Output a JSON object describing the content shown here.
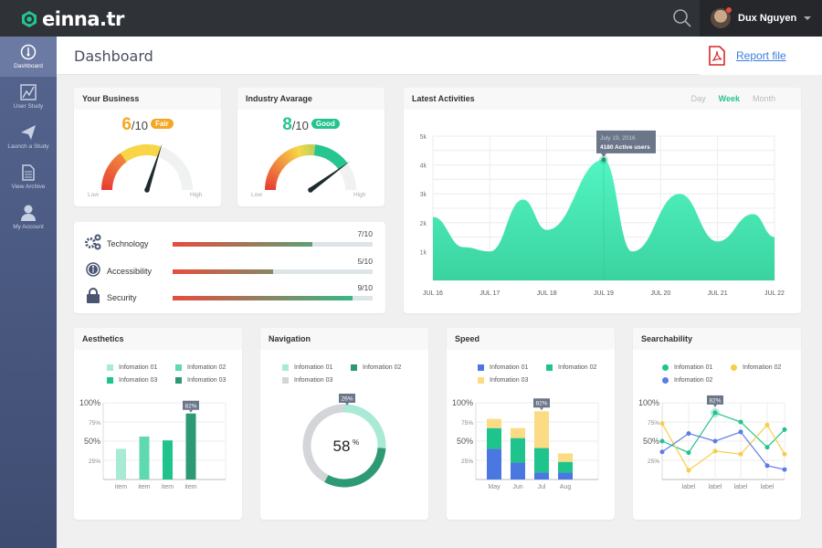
{
  "app": {
    "logo_text": "einna.tr",
    "brand_color": "#23c48e"
  },
  "user": {
    "name": "Dux Nguyen"
  },
  "sidebar": {
    "items": [
      {
        "label": "Dashboard",
        "icon": "dashboard-icon",
        "active": true
      },
      {
        "label": "User Study",
        "icon": "chart-icon"
      },
      {
        "label": "Launch a Study",
        "icon": "paper-plane-icon"
      },
      {
        "label": "View Archive",
        "icon": "document-icon"
      },
      {
        "label": "My Account",
        "icon": "user-icon"
      }
    ]
  },
  "header": {
    "title": "Dashboard",
    "report_label": "Report file"
  },
  "your_business": {
    "title": "Your Business",
    "score": 6,
    "max": "/10",
    "badge": "Fair",
    "badge_color": "#f5a623",
    "low": "Low",
    "high": "High"
  },
  "industry": {
    "title": "Industry Avarage",
    "score": 8,
    "max": "/10",
    "badge": "Good",
    "badge_color": "#23c48e",
    "low": "Low",
    "high": "High"
  },
  "ratings": [
    {
      "label": "Technology",
      "value": "7/10",
      "fraction": 0.7,
      "icon": "gears-icon"
    },
    {
      "label": "Accessibility",
      "value": "5/10",
      "fraction": 0.5,
      "icon": "accessibility-icon"
    },
    {
      "label": "Security",
      "value": "9/10",
      "fraction": 0.9,
      "icon": "lock-icon"
    }
  ],
  "activities": {
    "title": "Latest Activities",
    "tabs": [
      "Day",
      "Week",
      "Month"
    ],
    "active_tab": "Week",
    "tooltip_date": "July 19, 2016",
    "tooltip_value": "4180 Active users"
  },
  "chart_data": [
    {
      "type": "area",
      "title": "Latest Activities",
      "x_labels": [
        "JUL 16",
        "JUL 17",
        "JUL 18",
        "JUL 19",
        "JUL 20",
        "JUL 21",
        "JUL 22"
      ],
      "y_labels": [
        "1k",
        "2k",
        "3k",
        "4k",
        "5k"
      ],
      "ylim": [
        0,
        5000
      ],
      "grid": true,
      "color": "#3ee8b5",
      "points": [
        [
          "2016-07-16T00:00",
          2200
        ],
        [
          "2016-07-16T13:00",
          1150
        ],
        [
          "2016-07-17T00:00",
          1000
        ],
        [
          "2016-07-17T14:00",
          2800
        ],
        [
          "2016-07-18T00:00",
          1750
        ],
        [
          "2016-07-19T00:00",
          4180
        ],
        [
          "2016-07-19T12:00",
          1000
        ],
        [
          "2016-07-20T08:00",
          3000
        ],
        [
          "2016-07-21T00:00",
          1350
        ],
        [
          "2016-07-21T15:00",
          2300
        ],
        [
          "2016-07-22T00:00",
          1500
        ]
      ]
    },
    {
      "type": "bar",
      "title": "Aesthetics",
      "categories": [
        "item",
        "item",
        "item",
        "item"
      ],
      "values": [
        40,
        56,
        51,
        82
      ],
      "colors": [
        "#a8ead5",
        "#5fd9b0",
        "#1fc48d",
        "#2e9a74"
      ],
      "legend": [
        "Infomation 01",
        "Infomation 02",
        "Infomation 03",
        "Infomation 03"
      ],
      "y_labels": [
        "25%",
        "50%",
        "75%",
        "100%"
      ],
      "ylim": [
        0,
        100
      ],
      "callout": "82%"
    },
    {
      "type": "pie",
      "title": "Navigation",
      "series": [
        {
          "name": "Infomation 01",
          "value": 26,
          "color": "#a8ead5"
        },
        {
          "name": "Infomation 02",
          "value": 32,
          "color": "#2e9a74"
        },
        {
          "name": "Infomation 03",
          "value": 42,
          "color": "#d3d5d9"
        }
      ],
      "center_value": "58",
      "center_unit": "%",
      "callout": "26%"
    },
    {
      "type": "bar",
      "stacked": true,
      "title": "Speed",
      "categories": [
        "May",
        "Jun",
        "Jul",
        "Aug"
      ],
      "series": [
        {
          "name": "Infomation 01",
          "values": [
            40,
            22,
            9,
            9
          ],
          "color": "#4a78e0"
        },
        {
          "name": "Infomation 02",
          "values": [
            27,
            32,
            32,
            14
          ],
          "color": "#1fc48d"
        },
        {
          "name": "Infomation 03",
          "values": [
            12,
            13,
            48,
            11
          ],
          "color": "#fbdc84"
        }
      ],
      "y_labels": [
        "25%",
        "50%",
        "75%",
        "100%"
      ],
      "ylim": [
        0,
        100
      ],
      "callout": "82%"
    },
    {
      "type": "line",
      "title": "Searchability",
      "categories": [
        "",
        "label",
        "label",
        "label",
        "label",
        ""
      ],
      "series": [
        {
          "name": "Infomation 01",
          "values": [
            50,
            35,
            87,
            75,
            42,
            65
          ],
          "color": "#1fc48d"
        },
        {
          "name": "Infomation 02",
          "values": [
            73,
            12,
            37,
            33,
            71,
            33
          ],
          "color": "#f8cd4a"
        },
        {
          "name": "Infomation 02",
          "values": [
            36,
            60,
            50,
            62,
            18,
            13
          ],
          "color": "#5b7de6"
        }
      ],
      "y_labels": [
        "25%",
        "50%",
        "75%",
        "100%"
      ],
      "ylim": [
        0,
        100
      ],
      "callout": "82%"
    }
  ]
}
